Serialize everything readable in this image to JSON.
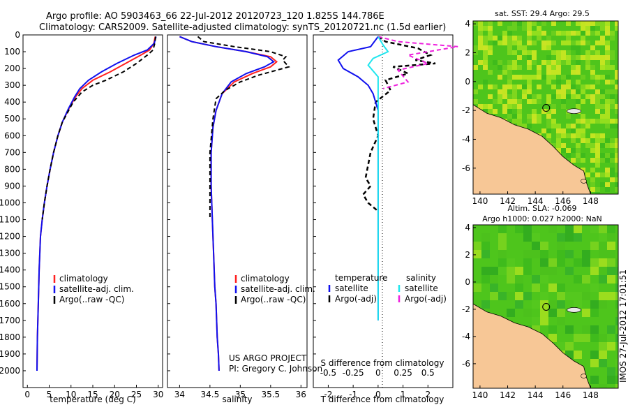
{
  "header": {
    "line1": "Argo profile: AO 5903463_66 22-Jul-2012 20120723_120 1.825S 144.786E",
    "line2": "Climatology: CARS2009. Satellite-adjusted climatology: synTS_20120721.nc (1.5d earlier)"
  },
  "colors": {
    "climatology": "#ff2020",
    "satellite": "#1010ee",
    "argo": "#000000",
    "salinity_satellite": "#20e6ee",
    "salinity_argo": "#ee20dd",
    "land": "#f7c796",
    "ocean_green": "#4ec51c"
  },
  "chart_data": [
    {
      "type": "line",
      "id": "temperature-profile",
      "xlabel": "temperature (deg C)",
      "xlim": [
        -1,
        31
      ],
      "ylim": [
        2100,
        0
      ],
      "x_ticks": [
        "0",
        "5",
        "10",
        "15",
        "20",
        "25",
        "30"
      ],
      "y_ticks": [
        "0",
        "100",
        "200",
        "300",
        "400",
        "500",
        "600",
        "700",
        "800",
        "900",
        "1000",
        "1100",
        "1200",
        "1300",
        "1400",
        "1500",
        "1600",
        "1700",
        "1800",
        "1900",
        "2000"
      ],
      "legend": [
        "climatology",
        "satellite-adj. clim.",
        "Argo(..raw -QC)"
      ],
      "series": [
        {
          "name": "climatology",
          "x": [
            29.3,
            29.0,
            28.0,
            26.0,
            22.5,
            19.0,
            15.0,
            12.5,
            11.0,
            9.5,
            8.0,
            7.0,
            6.0,
            5.2,
            4.5,
            3.9,
            3.4,
            3.0,
            2.7,
            2.5,
            2.3,
            2.2
          ],
          "y": [
            10,
            50,
            90,
            120,
            170,
            220,
            270,
            320,
            370,
            440,
            520,
            600,
            700,
            800,
            900,
            1000,
            1100,
            1200,
            1400,
            1600,
            1800,
            2000
          ]
        },
        {
          "name": "satellite-adj. clim.",
          "x": [
            29.5,
            29.1,
            27.5,
            24.5,
            20.5,
            17.0,
            14.0,
            12.0,
            10.8,
            9.4,
            8.0,
            7.0,
            6.0,
            5.2,
            4.5,
            3.9,
            3.4,
            3.0,
            2.7,
            2.5,
            2.3,
            2.2
          ],
          "y": [
            10,
            50,
            90,
            120,
            170,
            220,
            270,
            320,
            370,
            440,
            520,
            600,
            700,
            800,
            900,
            1000,
            1100,
            1200,
            1400,
            1600,
            1800,
            2000
          ]
        },
        {
          "name": "Argo(..raw -QC)",
          "x": [
            29.4,
            29.2,
            28.8,
            27.5,
            25.0,
            22.0,
            18.0,
            15.0,
            12.5,
            10.5,
            8.0,
            7.0,
            6.0,
            5.2,
            4.5,
            3.9,
            3.4
          ],
          "y": [
            10,
            50,
            90,
            120,
            170,
            220,
            270,
            300,
            340,
            400,
            520,
            600,
            700,
            800,
            900,
            1000,
            1100
          ]
        }
      ]
    },
    {
      "type": "line",
      "id": "salinity-profile",
      "xlabel": "salinity",
      "xlim": [
        33.8,
        36.1
      ],
      "ylim": [
        2100,
        0
      ],
      "x_ticks": [
        "34",
        "34.5",
        "35",
        "35.5",
        "36"
      ],
      "legend": [
        "climatology",
        "satellite-adj. clim.",
        "Argo(..raw -QC)"
      ],
      "annotation": [
        "US ARGO PROJECT",
        "PI: Gregory C. Johnson"
      ],
      "series": [
        {
          "name": "climatology",
          "x": [
            34.0,
            34.2,
            34.6,
            35.1,
            35.5,
            35.6,
            35.5,
            35.2,
            34.9,
            34.7,
            34.6,
            34.55,
            34.52,
            34.52,
            34.54,
            34.56,
            34.58,
            34.6,
            34.62,
            34.64,
            34.65
          ],
          "y": [
            10,
            40,
            70,
            100,
            130,
            160,
            190,
            230,
            280,
            350,
            450,
            550,
            700,
            900,
            1100,
            1300,
            1500,
            1600,
            1800,
            1900,
            2000
          ]
        },
        {
          "name": "satellite-adj. clim.",
          "x": [
            34.0,
            34.2,
            34.6,
            35.1,
            35.45,
            35.55,
            35.4,
            35.1,
            34.85,
            34.7,
            34.6,
            34.55,
            34.52,
            34.52,
            34.54,
            34.56,
            34.58,
            34.6,
            34.62,
            34.64,
            34.65
          ],
          "y": [
            10,
            40,
            70,
            100,
            130,
            160,
            190,
            230,
            280,
            350,
            450,
            550,
            700,
            900,
            1100,
            1300,
            1500,
            1600,
            1800,
            1900,
            2000
          ]
        },
        {
          "name": "Argo(..raw -QC)",
          "x": [
            34.3,
            34.4,
            34.9,
            35.5,
            35.75,
            35.7,
            35.8,
            35.3,
            35.0,
            34.75,
            34.6,
            34.55,
            34.5,
            34.5,
            34.5,
            34.5
          ],
          "y": [
            10,
            40,
            70,
            100,
            130,
            150,
            190,
            240,
            280,
            330,
            380,
            500,
            700,
            800,
            900,
            1100
          ]
        }
      ]
    },
    {
      "type": "line",
      "id": "difference-profile",
      "xlabel": "T difference from climatology",
      "xlabel_top": "S difference from climatology",
      "xlim": [
        -2.6,
        3.0
      ],
      "ylim": [
        2100,
        0
      ],
      "x_ticks": [
        "-2",
        "-1",
        "0",
        "1",
        "2"
      ],
      "x_ticks_top": [
        "-0.5",
        "-0.25",
        "0",
        "0.25",
        "0.5"
      ],
      "legend_groups": [
        {
          "title": "temperature",
          "items": [
            "satellite",
            "Argo(-adj)"
          ]
        },
        {
          "title": "salinity",
          "items": [
            "satellite",
            "Argo(-adj)"
          ]
        }
      ],
      "series": [
        {
          "name": "temperature satellite",
          "x": [
            0.0,
            -0.3,
            -1.2,
            -1.6,
            -1.4,
            -0.8,
            -0.4,
            -0.2,
            -0.1,
            0.0,
            0.0,
            0.0
          ],
          "y": [
            10,
            70,
            100,
            150,
            200,
            250,
            300,
            350,
            400,
            450,
            800,
            1700
          ]
        },
        {
          "name": "temperature Argo(-adj)",
          "x": [
            0.0,
            0.3,
            1.6,
            2.1,
            1.5,
            2.3,
            0.6,
            1.2,
            0.3,
            0.5,
            -0.1,
            -0.2,
            0.0,
            -0.3,
            -0.5,
            -0.3,
            -0.6,
            -0.4,
            0.0
          ],
          "y": [
            10,
            40,
            80,
            120,
            150,
            170,
            190,
            230,
            270,
            330,
            400,
            500,
            600,
            700,
            850,
            900,
            950,
            1000,
            1050
          ]
        },
        {
          "name": "salinity satellite",
          "x": [
            0.0,
            0.05,
            0.1,
            -0.05,
            -0.1,
            0.0,
            0.0,
            0.0
          ],
          "y": [
            10,
            60,
            100,
            140,
            180,
            250,
            500,
            1700
          ]
        },
        {
          "name": "salinity Argo(-adj)",
          "x": [
            0.0,
            0.2,
            0.8,
            0.3,
            0.5,
            0.2,
            0.3,
            0.05
          ],
          "y": [
            10,
            40,
            70,
            120,
            170,
            210,
            280,
            320
          ]
        }
      ]
    },
    {
      "type": "heatmap",
      "id": "sst-map",
      "title": "sat. SST: 29.4 Argo: 29.5",
      "xlim": [
        139.5,
        150
      ],
      "ylim": [
        -7.8,
        4.2
      ],
      "x_ticks": [
        "140",
        "142",
        "144",
        "146",
        "148"
      ],
      "y_ticks": [
        "4",
        "2",
        "0",
        "-2",
        "-4",
        "-6"
      ],
      "argo_location": [
        144.786,
        -1.825
      ]
    },
    {
      "type": "heatmap",
      "id": "sla-map",
      "title": [
        "Altim. SLA: -0.069",
        "Argo h1000: 0.027 h2000: NaN"
      ],
      "xlim": [
        139.5,
        150
      ],
      "ylim": [
        -7.8,
        4.2
      ],
      "x_ticks": [
        "140",
        "142",
        "144",
        "146",
        "148"
      ],
      "y_ticks": [
        "4",
        "2",
        "0",
        "-2",
        "-4",
        "-6"
      ],
      "argo_location": [
        144.786,
        -1.825
      ]
    }
  ],
  "footer": {
    "stamp": "IMOS 27-Jul-2012 17:01:51"
  }
}
